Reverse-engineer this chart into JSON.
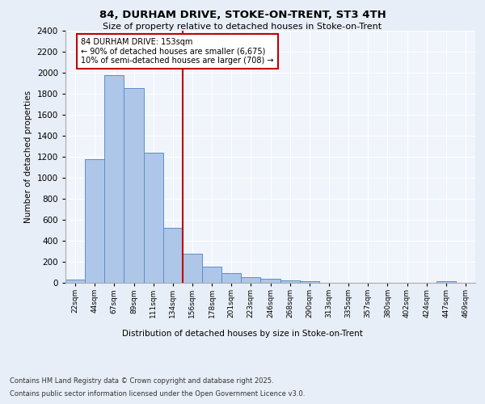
{
  "title_line1": "84, DURHAM DRIVE, STOKE-ON-TRENT, ST3 4TH",
  "title_line2": "Size of property relative to detached houses in Stoke-on-Trent",
  "xlabel": "Distribution of detached houses by size in Stoke-on-Trent",
  "ylabel": "Number of detached properties",
  "categories": [
    "22sqm",
    "44sqm",
    "67sqm",
    "89sqm",
    "111sqm",
    "134sqm",
    "156sqm",
    "178sqm",
    "201sqm",
    "223sqm",
    "246sqm",
    "268sqm",
    "290sqm",
    "313sqm",
    "335sqm",
    "357sqm",
    "380sqm",
    "402sqm",
    "424sqm",
    "447sqm",
    "469sqm"
  ],
  "values": [
    30,
    1175,
    1975,
    1850,
    1240,
    520,
    275,
    155,
    90,
    50,
    40,
    25,
    15,
    0,
    0,
    0,
    0,
    0,
    0,
    15,
    0
  ],
  "bar_color": "#aec6e8",
  "bar_edge_color": "#5b8fc9",
  "vline_color": "#c00000",
  "annotation_text": "84 DURHAM DRIVE: 153sqm\n← 90% of detached houses are smaller (6,675)\n10% of semi-detached houses are larger (708) →",
  "annotation_box_color": "#c00000",
  "ylim": [
    0,
    2400
  ],
  "yticks": [
    0,
    200,
    400,
    600,
    800,
    1000,
    1200,
    1400,
    1600,
    1800,
    2000,
    2200,
    2400
  ],
  "footnote1": "Contains HM Land Registry data © Crown copyright and database right 2025.",
  "footnote2": "Contains public sector information licensed under the Open Government Licence v3.0.",
  "bg_color": "#e8eef7",
  "plot_bg_color": "#f0f4fb",
  "grid_color": "#ffffff",
  "vline_bar_index": 6
}
